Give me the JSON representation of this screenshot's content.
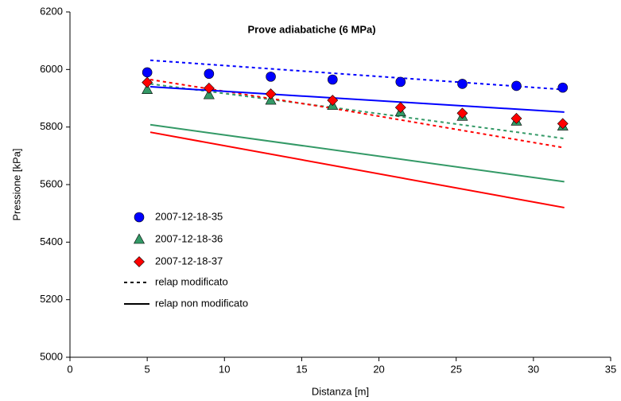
{
  "chart_data": {
    "type": "scatter",
    "title": "Prove adiabatiche (6 MPa)",
    "x_label": "Distanza [m]",
    "y_label": "Pressione [kPa]",
    "xlim": [
      0,
      35
    ],
    "xticks": [
      0,
      5,
      10,
      15,
      20,
      25,
      30,
      35
    ],
    "ylim": [
      5000,
      6200
    ],
    "yticks": [
      5000,
      5200,
      5400,
      5600,
      5800,
      6000,
      6200
    ],
    "series": [
      {
        "name": "2007-12-18-35",
        "color": "#0000ff",
        "marker": "circle",
        "x": [
          5,
          9,
          13,
          17,
          21.4,
          25.4,
          28.9,
          31.9
        ],
        "values": [
          5990,
          5985,
          5975,
          5965,
          5957,
          5950,
          5943,
          5937
        ]
      },
      {
        "name": "2007-12-18-36",
        "color": "#339966",
        "marker": "triangle",
        "x": [
          5,
          9,
          13,
          17,
          21.4,
          25.4,
          28.9,
          31.9
        ],
        "values": [
          5930,
          5912,
          5893,
          5875,
          5852,
          5837,
          5820,
          5803
        ]
      },
      {
        "name": "2007-12-18-37",
        "color": "#ff0000",
        "marker": "diamond",
        "x": [
          5,
          9,
          13,
          17,
          21.4,
          25.4,
          28.9,
          31.9
        ],
        "values": [
          5955,
          5935,
          5915,
          5893,
          5868,
          5848,
          5830,
          5812
        ]
      }
    ],
    "lines": [
      {
        "color": "#0000ff",
        "dashed": true,
        "x": [
          5.2,
          32
        ],
        "values": [
          6032,
          5930
        ]
      },
      {
        "color": "#339966",
        "dashed": true,
        "x": [
          5.2,
          17,
          32
        ],
        "values": [
          5950,
          5868,
          5760
        ]
      },
      {
        "color": "#ff0000",
        "dashed": true,
        "x": [
          5.2,
          17,
          32
        ],
        "values": [
          5965,
          5865,
          5728
        ]
      },
      {
        "color": "#0000ff",
        "dashed": false,
        "x": [
          5.2,
          32
        ],
        "values": [
          5940,
          5852
        ]
      },
      {
        "color": "#339966",
        "dashed": false,
        "x": [
          5.2,
          32
        ],
        "values": [
          5808,
          5610
        ]
      },
      {
        "color": "#ff0000",
        "dashed": false,
        "x": [
          5.2,
          32
        ],
        "values": [
          5782,
          5520
        ]
      }
    ],
    "line_legend": [
      {
        "label": "relap modificato",
        "dashed": true
      },
      {
        "label": "relap non modificato",
        "dashed": false
      }
    ]
  }
}
